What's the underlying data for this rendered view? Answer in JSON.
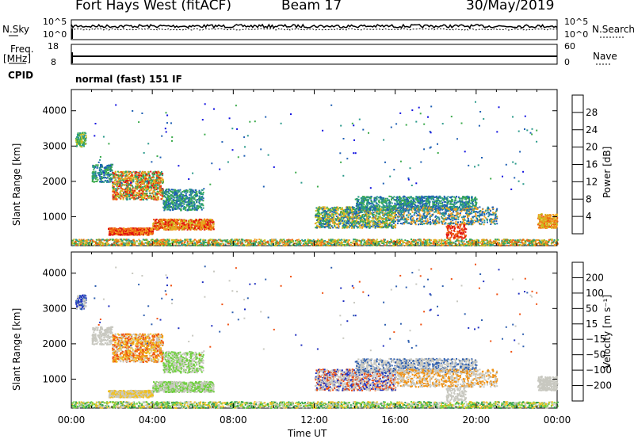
{
  "header": {
    "station": "Fort Hays West (fitACF)",
    "beam": "Beam 17",
    "date": "30/May/2019"
  },
  "top_panels": {
    "nsky_label": "N.Sky",
    "nsky_ticks": [
      "10^5",
      "10^0"
    ],
    "nsearch_label": "N.Search",
    "nsearch_ticks": [
      "10^5",
      "10^0"
    ],
    "freq_label": "Freq.",
    "freq_unit": "[MHz]",
    "freq_ticks": [
      "18",
      "8"
    ],
    "nave_label": "Nave",
    "nave_ticks": [
      "60",
      "0"
    ],
    "cpid_label": "CPID",
    "cpid_value": "normal (fast) 151 IF"
  },
  "chart_data": [
    {
      "type": "heatmap",
      "name": "power-panel",
      "xlabel": "",
      "ylabel": "Slant Range [km]",
      "x_range_hours": [
        0,
        24
      ],
      "ylim": [
        180,
        4600
      ],
      "y_ticks": [
        1000,
        2000,
        3000,
        4000
      ],
      "colorbar": {
        "label": "Power [dB]",
        "range": [
          0,
          32
        ],
        "ticks": [
          "4",
          "8",
          "12",
          "16",
          "20",
          "24",
          "28"
        ],
        "colors": [
          "#1010e0",
          "#1e5fb4",
          "#2a9a8a",
          "#3aaa4a",
          "#c8c020",
          "#f0a020",
          "#f06010",
          "#e01010"
        ]
      },
      "regions": [
        {
          "x": [
            1.0,
            4.5
          ],
          "y": [
            1500,
            2400
          ],
          "level": "mixed"
        },
        {
          "x": [
            1.8,
            7.0
          ],
          "y": [
            500,
            900
          ],
          "level": "high"
        },
        {
          "x": [
            12.0,
            23.0
          ],
          "y": [
            600,
            1600
          ],
          "level": "mixed"
        },
        {
          "x": [
            0,
            24
          ],
          "y": [
            180,
            350
          ],
          "level": "low"
        }
      ]
    },
    {
      "type": "heatmap",
      "name": "velocity-panel",
      "xlabel": "Time UT",
      "ylabel": "Slant Range [km]",
      "x_range_hours": [
        0,
        24
      ],
      "ylim": [
        180,
        4600
      ],
      "y_ticks": [
        1000,
        2000,
        3000,
        4000
      ],
      "x_ticks": [
        "00:00",
        "04:00",
        "08:00",
        "12:00",
        "16:00",
        "20:00",
        "00:00"
      ],
      "colorbar": {
        "label": "Velocity [m s⁻¹]",
        "ticks": [
          "200",
          "100",
          "50",
          "15",
          "−15",
          "−50",
          "−100",
          "−200"
        ],
        "colors": [
          "#2030c0",
          "#3060b0",
          "#30a050",
          "#70d040",
          "#c8c8c0",
          "#f0c020",
          "#f09010",
          "#f05010",
          "#e01010"
        ]
      }
    }
  ]
}
